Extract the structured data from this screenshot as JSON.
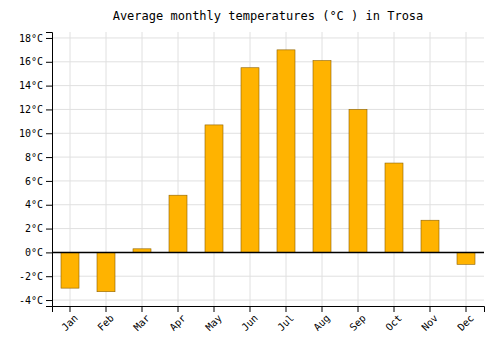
{
  "chart_data": {
    "type": "bar",
    "title": "Average monthly temperatures (°C ) in Trosa",
    "categories": [
      "Jan",
      "Feb",
      "Mar",
      "Apr",
      "May",
      "Jun",
      "Jul",
      "Aug",
      "Sep",
      "Oct",
      "Nov",
      "Dec"
    ],
    "values": [
      -3.0,
      -3.3,
      0.3,
      4.8,
      10.7,
      15.5,
      17.0,
      16.1,
      12.0,
      7.5,
      2.7,
      -1.0
    ],
    "color": "#FFB300",
    "ylim": [
      -4.5,
      18.5
    ],
    "yticks": [
      {
        "value": -4,
        "label": "-4°C"
      },
      {
        "value": -2,
        "label": "-2°C"
      },
      {
        "value": 0,
        "label": "0°C"
      },
      {
        "value": 2,
        "label": "2°C"
      },
      {
        "value": 4,
        "label": "4°C"
      },
      {
        "value": 6,
        "label": "6°C"
      },
      {
        "value": 8,
        "label": "8°C"
      },
      {
        "value": 10,
        "label": "10°C"
      },
      {
        "value": 12,
        "label": "12°C"
      },
      {
        "value": 14,
        "label": "14°C"
      },
      {
        "value": 16,
        "label": "16°C"
      },
      {
        "value": 18,
        "label": "18°C"
      }
    ],
    "grid": true
  }
}
